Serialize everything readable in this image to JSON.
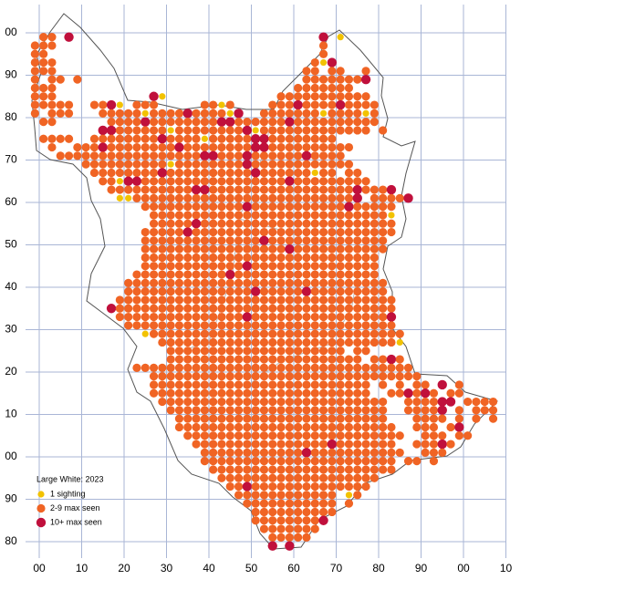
{
  "map": {
    "x_labels": [
      "00",
      "10",
      "20",
      "30",
      "40",
      "50",
      "60",
      "70",
      "80",
      "90",
      "00",
      "10"
    ],
    "y_labels": [
      "00",
      "90",
      "80",
      "70",
      "60",
      "50",
      "40",
      "30",
      "20",
      "10",
      "00",
      "90",
      "80"
    ],
    "legend": {
      "title": "Large White:  2023",
      "items": [
        {
          "label": "1 sighting",
          "color": "#f2c200"
        },
        {
          "label": "2-9 max seen",
          "color": "#f06424"
        },
        {
          "label": "10+ max seen",
          "color": "#c0103c"
        }
      ]
    },
    "grid_rows": [
      ".22.3.............................3.1",
      "222...............................2",
      "22................................2",
      "222..............................213",
      "222.............................22.22..2",
      "2.22.2..........................22222223",
      "222............................2222222",
      "222...........31.............22222222222",
      "22222..2231.222.....2212....2223222232222",
      "2.222...22222122223222213..22222221222212",
      ".22......22223222222223322222232222222222",
      "........33222222122222222312222222222222.2",
      ".2222..22222222322221222223322222222",
      "..2..222322222222322222222332222222222",
      "...2222222222222222233222322222232222",
      "......22222222221222222223222222222222",
      ".......22222222322222222223222222122 22",
      "........22133222222222222222223222222222",
      ".........2222222222332222222222222222232223",
      "..........11222222222222222222222222223 22223",
      ".............222222222222322222222222322222",
      "..............22222222222222222222222222221",
      "..............22222322222222222222222222222",
      ".............222223222222222222222222222222",
      ".............22222222222222322222222222222",
      ".............22222222222222222322222222222",
      ".............2222222222222222222222222222",
      ".............2222222222223222222222222222",
      "............22222222222322222222222222222",
      "...........2222222222222222222222222222222",
      "...........2222222222222223222223222222222",
      "..........222222222222222222222222222222222",
      ".........3222222222222222222222222222222222",
      "..........222222222222222322222222222222223",
      "...........22222222222222222222222222222222",
      ".............1222222222222222222222222222222",
      "...............22222222222222222222222222221",
      "................222222222222222222222.22",
      "................22222222222222222222222.2232",
      "............222222222222222222222222222222222",
      "..............22222222222222222222222222222222",
      "..............22222222222222222222222222.2.2.22.3.2",
      "..............22222222222222222222222222..223232.22",
      "...............222222222222222222222222222..222233.2222",
      "................22222222222222222222222222..22223.2.222",
      ".................2222222222222222222222222...2222.2.2.2",
      ".................22222222222222222222222222..222.23.",
      "..................22222222222222222222222222..222.22",
      "...................222222222222222232222222..22232",
      "....................222222222222322222222222..222",
      "....................22222222222222222222222.22.2",
      ".....................2222222222222222222222",
      "......................2222222222222222222",
      ".......................22322222222222222",
      "........................222222222222.12",
      ".........................22222222222.2",
      "..........................2222222222",
      "..........................222222223",
      "...........................2222222",
      "............................22222",
      "............................3.3."
    ]
  }
}
